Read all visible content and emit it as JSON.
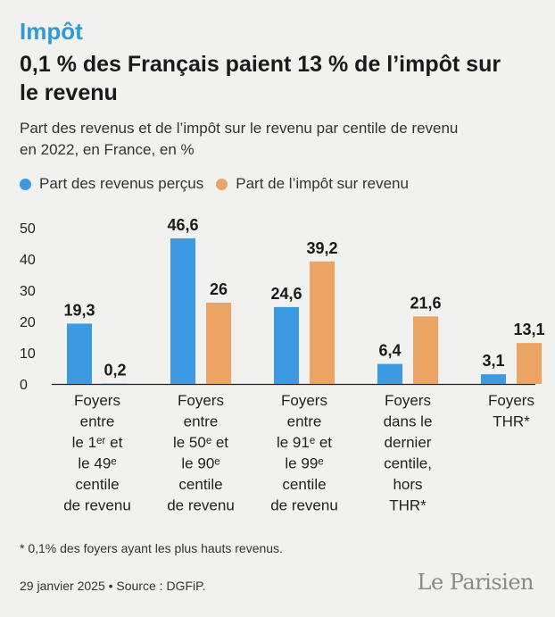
{
  "kicker": "Impôt",
  "headline": "0,1 % des Français paient 13 % de l’impôt sur le revenu",
  "subtitle": "Part des revenus et de l’impôt sur le revenu par centile de revenu en 2022, en France, en %",
  "footnote": "* 0,1% des foyers ayant les plus hauts revenus.",
  "source": "29 janvier 2025 • Source : DGFiP.",
  "logo": "Le Parisien",
  "colors": {
    "revenus": "#3b9ae1",
    "impot": "#eba463"
  },
  "chart_data": {
    "type": "bar",
    "ylim": [
      0,
      50
    ],
    "yticks": [
      0,
      10,
      20,
      30,
      40,
      50
    ],
    "grid": false,
    "legend_position": "top-left",
    "categories": [
      [
        "Foyers",
        "entre",
        "le 1ᵉʳ et",
        "le 49ᵉ",
        "centile",
        "de revenu"
      ],
      [
        "Foyers",
        "entre",
        "le 50ᵉ et",
        "le 90ᵉ",
        "centile",
        "de revenu"
      ],
      [
        "Foyers",
        "entre",
        "le 91ᵉ et",
        "le 99ᵉ",
        "centile",
        "de revenu"
      ],
      [
        "Foyers",
        "dans le",
        "dernier",
        "centile,",
        "hors",
        "THR*"
      ],
      [
        "Foyers",
        "THR*"
      ]
    ],
    "series": [
      {
        "name": "Part des revenus perçus",
        "values": [
          19.3,
          46.6,
          24.6,
          6.4,
          3.1
        ],
        "labels": [
          "19,3",
          "46,6",
          "24,6",
          "6,4",
          "3,1"
        ]
      },
      {
        "name": "Part de l’impôt sur revenu",
        "values": [
          0.2,
          26,
          39.2,
          21.6,
          13.1
        ],
        "labels": [
          "0,2",
          "26",
          "39,2",
          "21,6",
          "13,1"
        ]
      }
    ]
  }
}
